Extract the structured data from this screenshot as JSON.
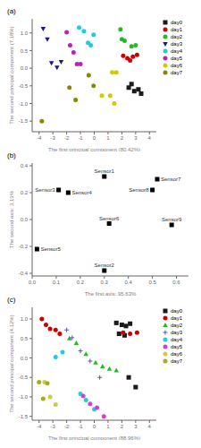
{
  "chart_data": [
    {
      "type": "scatter",
      "title": "(a)",
      "xlabel": "The first principal component (80.42%)",
      "ylabel": "The second principal component (7.18%)",
      "xlim": [
        -4.5,
        4.5
      ],
      "ylim": [
        -1.8,
        1.4
      ],
      "xticks": [
        -4,
        -3,
        -2,
        -1,
        0,
        1,
        2,
        3,
        4
      ],
      "yticks": [
        -1.5,
        {
          "value": -1.0,
          "label": "-1.0"
        },
        -0.5,
        {
          "value": 0.0,
          "label": "0.0"
        },
        0.5,
        {
          "value": 1.0,
          "label": "1.0"
        }
      ],
      "legend": "right",
      "series": [
        {
          "name": "day0",
          "color": "#1a1a1a",
          "marker": "square",
          "values": [
            [
              2.5,
              -0.55
            ],
            [
              2.9,
              -0.65
            ],
            [
              3.2,
              -0.6
            ],
            [
              3.4,
              -0.72
            ],
            [
              2.7,
              -0.45
            ]
          ]
        },
        {
          "name": "day1",
          "color": "#cc0000",
          "marker": "circle",
          "values": [
            [
              2.1,
              0.35
            ],
            [
              2.4,
              0.28
            ],
            [
              2.8,
              0.33
            ],
            [
              3.1,
              0.38
            ],
            [
              2.6,
              0.22
            ]
          ]
        },
        {
          "name": "day2",
          "color": "#22bb22",
          "marker": "circle",
          "values": [
            [
              1.9,
              1.1
            ],
            [
              2.2,
              0.78
            ],
            [
              2.7,
              0.62
            ],
            [
              3.0,
              0.65
            ],
            [
              2.0,
              0.82
            ]
          ]
        },
        {
          "name": "day3",
          "color": "#1a1a7a",
          "marker": "triangle_down",
          "values": [
            [
              -3.7,
              1.12
            ],
            [
              -3.4,
              0.82
            ],
            [
              -3.1,
              0.15
            ],
            [
              -2.7,
              0.02
            ],
            [
              -2.4,
              0.18
            ]
          ]
        },
        {
          "name": "day4",
          "color": "#22ccdd",
          "marker": "circle",
          "values": [
            [
              -1.1,
              1.15
            ],
            [
              -0.75,
              1.05
            ],
            [
              -0.45,
              0.72
            ],
            [
              -0.25,
              0.65
            ],
            [
              -0.05,
              0.95
            ]
          ]
        },
        {
          "name": "day5",
          "color": "#bb22bb",
          "marker": "circle",
          "values": [
            [
              -2.0,
              1.02
            ],
            [
              -1.75,
              0.65
            ],
            [
              -1.5,
              0.45
            ],
            [
              -1.25,
              0.12
            ],
            [
              -1.0,
              0.12
            ]
          ]
        },
        {
          "name": "day6",
          "color": "#cccc00",
          "marker": "circle",
          "values": [
            [
              1.3,
              -0.12
            ],
            [
              1.6,
              -0.12
            ],
            [
              0.55,
              -0.78
            ],
            [
              1.15,
              -0.78
            ],
            [
              1.45,
              -1.0
            ]
          ]
        },
        {
          "name": "day7",
          "color": "#888800",
          "marker": "circle",
          "values": [
            [
              -3.8,
              -1.5
            ],
            [
              -1.8,
              -0.55
            ],
            [
              -1.35,
              -0.9
            ],
            [
              -0.4,
              -0.2
            ],
            [
              -0.05,
              -0.5
            ]
          ]
        }
      ]
    },
    {
      "type": "scatter",
      "title": "(b)",
      "xlabel": "The first axis: 95.63%",
      "ylabel": "The second axis: 3.13%",
      "xlim": [
        0.0,
        0.65
      ],
      "ylim": [
        -0.42,
        0.42
      ],
      "xticks": [
        {
          "value": 0.0,
          "label": "0.0"
        },
        0.1,
        0.2,
        0.3,
        0.4,
        0.5,
        0.6
      ],
      "yticks": [
        -0.4,
        -0.2,
        {
          "value": 0.0,
          "label": "0.0"
        },
        0.2,
        0.4
      ],
      "series": [
        {
          "color": "#000000",
          "marker": "square",
          "values": [
            [
              0.3,
              0.32
            ],
            [
              0.3,
              -0.38
            ],
            [
              0.11,
              0.22
            ],
            [
              0.15,
              0.2
            ],
            [
              0.02,
              -0.22
            ],
            [
              0.32,
              -0.03
            ],
            [
              0.52,
              0.3
            ],
            [
              0.5,
              0.22
            ],
            [
              0.58,
              -0.04
            ]
          ],
          "annotations": [
            "Sensor1",
            "Sensor2",
            "Sensor3",
            "Sensor4",
            "Sensor5",
            "Sensor6",
            "Sensor7",
            "Sensor8",
            "Sensor9"
          ]
        }
      ]
    },
    {
      "type": "scatter",
      "title": "(c)",
      "xlabel": "The first principal component (88.96%)",
      "ylabel": "The second principal component (4.12%)",
      "xlim": [
        -4.5,
        4.5
      ],
      "ylim": [
        -1.6,
        1.3
      ],
      "xticks": [
        -4,
        -3,
        -2,
        -1,
        0,
        1,
        2,
        3,
        4
      ],
      "yticks": [
        -1.5,
        {
          "value": -1.0,
          "label": "-1.0"
        },
        -0.5,
        {
          "value": 0.0,
          "label": "0.0"
        },
        0.5,
        {
          "value": 1.0,
          "label": "1.0"
        }
      ],
      "legend": "right",
      "series": [
        {
          "name": "day0",
          "color": "#1a1a1a",
          "marker": "square",
          "values": [
            [
              1.6,
              0.9
            ],
            [
              2.0,
              0.85
            ],
            [
              2.3,
              0.82
            ],
            [
              2.6,
              0.88
            ],
            [
              1.8,
              0.62
            ],
            [
              2.2,
              0.58
            ],
            [
              2.5,
              -0.5
            ],
            [
              3.0,
              -0.75
            ]
          ]
        },
        {
          "name": "day1",
          "color": "#cc0000",
          "marker": "circle",
          "values": [
            [
              -3.8,
              1.0
            ],
            [
              -3.5,
              0.85
            ],
            [
              -3.2,
              0.75
            ],
            [
              -2.8,
              0.72
            ],
            [
              -2.5,
              0.62
            ],
            [
              2.1,
              0.65
            ],
            [
              2.6,
              0.62
            ],
            [
              3.1,
              0.65
            ]
          ]
        },
        {
          "name": "day2",
          "color": "#22bb22",
          "marker": "triangle",
          "values": [
            [
              -1.8,
              0.5
            ],
            [
              -1.3,
              0.38
            ],
            [
              -0.6,
              0.1
            ],
            [
              0.1,
              -0.12
            ],
            [
              0.6,
              -0.22
            ],
            [
              1.1,
              -0.28
            ],
            [
              1.6,
              -0.32
            ]
          ]
        },
        {
          "name": "day3",
          "color": "#5555aa",
          "marker": "plus",
          "values": [
            [
              -2.0,
              0.72
            ],
            [
              -1.6,
              0.52
            ],
            [
              -1.0,
              0.18
            ],
            [
              -0.3,
              -0.08
            ],
            [
              0.4,
              -0.5
            ]
          ]
        },
        {
          "name": "day4",
          "color": "#22ccdd",
          "marker": "circle",
          "values": [
            [
              -2.8,
              0.02
            ],
            [
              -2.3,
              0.15
            ],
            [
              -1.0,
              -0.92
            ],
            [
              -0.6,
              -1.08
            ],
            [
              0.0,
              -1.32
            ]
          ]
        },
        {
          "name": "day5",
          "color": "#cc44cc",
          "marker": "circle",
          "values": [
            [
              -0.8,
              -0.98
            ],
            [
              -0.3,
              -1.18
            ],
            [
              0.2,
              -1.28
            ],
            [
              0.7,
              -1.5
            ]
          ]
        },
        {
          "name": "day6",
          "color": "#cccc44",
          "marker": "circle",
          "values": [
            [
              -3.6,
              -0.62
            ],
            [
              -3.2,
              -1.0
            ],
            [
              -2.8,
              -1.2
            ]
          ]
        },
        {
          "name": "day7",
          "color": "#aaaa22",
          "marker": "circle",
          "values": [
            [
              -4.0,
              -0.62
            ],
            [
              -3.4,
              -0.65
            ],
            [
              -3.7,
              -1.05
            ]
          ]
        }
      ]
    }
  ]
}
